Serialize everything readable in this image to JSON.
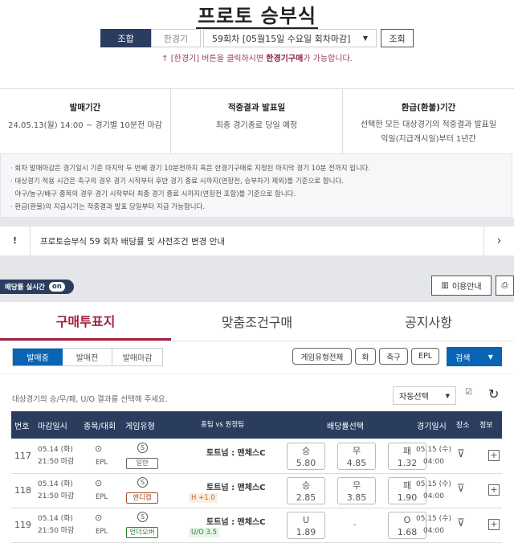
{
  "header": {
    "title": "프로토 승부식",
    "mode_combo": "조합",
    "mode_single": "한경기",
    "round_select": "59회차 [05월15일 수요일 회차마감]",
    "search_button": "조회",
    "hint_prefix": "[한경기] 버튼을 클릭하시면 ",
    "hint_bold": "한경기구매",
    "hint_suffix": "가 가능합니다."
  },
  "info": [
    {
      "title": "발매기간",
      "lines": [
        "24.05.13(월) 14:00 ~ 경기별 10분전 마감"
      ]
    },
    {
      "title": "적중결과 발표일",
      "lines": [
        "최종 경기종료 당일 예정"
      ]
    },
    {
      "title": "환급(환불)기간",
      "lines": [
        "선택한 모든 대상경기의 적중결과 발표일",
        "익일(지급개시일)부터 1년간"
      ]
    }
  ],
  "notes": [
    "· 회차 발매마감은 경기일시 기준 마지막 두 번째 경기 10분전까지 혹은 한경기구매로 지정된 마지막 경기 10분 전까지 입니다.",
    "· 대상경기 적용 시간은 축구의 경우 경기 시작부터 후반 경기 종료 시까지(연장전, 승부차기 제외)를 기준으로 합니다.",
    "  야구/농구/배구 종목의 경우 경기 시작부터 최종 경기 종료 시까지(연장전 포함)를 기준으로 합니다.",
    "· 환급(환불)의 지급시기는 적중결과 발표 당일부터 지급 가능합니다."
  ],
  "notice": {
    "icon": "!",
    "text": "프로토승부식 59 회차 배당률 및 사전조건 변경 안내"
  },
  "toolbar": {
    "realtime_label": "배당률 실시간",
    "realtime_state": "on",
    "guide_button": "이용안내"
  },
  "tabs": [
    "구매투표지",
    "맞춤조건구매",
    "공지사항"
  ],
  "filters": {
    "status": [
      "발매중",
      "발매전",
      "발매마감"
    ],
    "chips": [
      "게임유형전체",
      "화",
      "축구",
      "EPL"
    ],
    "search": "검색"
  },
  "instruction": "대상경기의 승/무/패, U/O 결과를 선택해 주세요.",
  "auto_select": "자동선택",
  "columns": [
    "번호",
    "마감일시",
    "종목/대회",
    "게임유형",
    "홈팀 vs 원정팀",
    "배당률선택",
    "경기일시",
    "장소",
    "정보"
  ],
  "rows": [
    {
      "no": "117",
      "close_date": "05.14 (화)",
      "close_time": "21:50 마감",
      "league": "EPL",
      "game_type": "일반",
      "type_color": "#666666",
      "match": "토트넘 : 맨체스C",
      "cond": "",
      "odds": [
        {
          "label": "승",
          "value": "5.80"
        },
        {
          "label": "무",
          "value": "4.85"
        },
        {
          "label": "패",
          "value": "1.32"
        }
      ],
      "game_date": "05.15 (수)",
      "game_time": "04:00"
    },
    {
      "no": "118",
      "close_date": "05.14 (화)",
      "close_time": "21:50 마감",
      "league": "EPL",
      "game_type": "핸디캡",
      "type_color": "#a0522d",
      "match": "토트넘 : 맨체스C",
      "cond": "H +1.0",
      "odds": [
        {
          "label": "승",
          "value": "2.85"
        },
        {
          "label": "무",
          "value": "3.85"
        },
        {
          "label": "패",
          "value": "1.90"
        }
      ],
      "game_date": "05.15 (수)",
      "game_time": "04:00"
    },
    {
      "no": "119",
      "close_date": "05.14 (화)",
      "close_time": "21:50 마감",
      "league": "EPL",
      "game_type": "언더오버",
      "type_color": "#2e7d32",
      "match": "토트넘 : 맨체스C",
      "cond": "U/O 3.5",
      "odds": [
        {
          "label": "U",
          "value": "1.89"
        },
        {
          "label": "",
          "value": "-"
        },
        {
          "label": "O",
          "value": "1.68"
        }
      ],
      "game_date": "05.15 (수)",
      "game_time": "04:00"
    }
  ],
  "colors": {
    "navy": "#2b3d5f",
    "accent_red": "#a3203f",
    "blue": "#0a64b4"
  }
}
